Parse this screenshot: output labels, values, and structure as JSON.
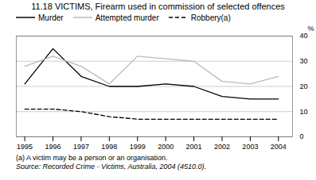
{
  "chart_data": {
    "type": "line",
    "title": "11.18   VICTIMS, Firearm used in commission of selected offences",
    "x": [
      1995,
      1996,
      1997,
      1998,
      1999,
      2000,
      2001,
      2002,
      2003,
      2004
    ],
    "series": [
      {
        "name": "Murder",
        "color": "#000000",
        "line_style": "solid",
        "values": [
          21,
          35,
          24,
          20,
          20,
          21,
          20,
          16,
          15,
          15
        ]
      },
      {
        "name": "Attempted murder",
        "color": "#bbbbbb",
        "line_style": "solid",
        "values": [
          28,
          32,
          28,
          21,
          32,
          31,
          30,
          22,
          21,
          24
        ]
      },
      {
        "name": "Robbery(a)",
        "color": "#000000",
        "line_style": "dashed",
        "values": [
          11,
          11,
          10,
          8,
          7,
          7,
          7,
          7,
          7,
          7
        ]
      }
    ],
    "xlim": [
      1994.7,
      2004.5
    ],
    "xticks": [
      1995,
      1996,
      1997,
      1998,
      1999,
      2000,
      2001,
      2002,
      2003,
      2004
    ],
    "ylim": [
      0,
      40
    ],
    "yticks": [
      0,
      10,
      20,
      30,
      40
    ],
    "ylabel": "%",
    "grid": true,
    "legend": "upper left",
    "annotations": [
      "(a) A victim may be a  person or an organisation.",
      "Source:  Recorded Crime - Victims, Australia, 2004 (4510.0)."
    ]
  }
}
